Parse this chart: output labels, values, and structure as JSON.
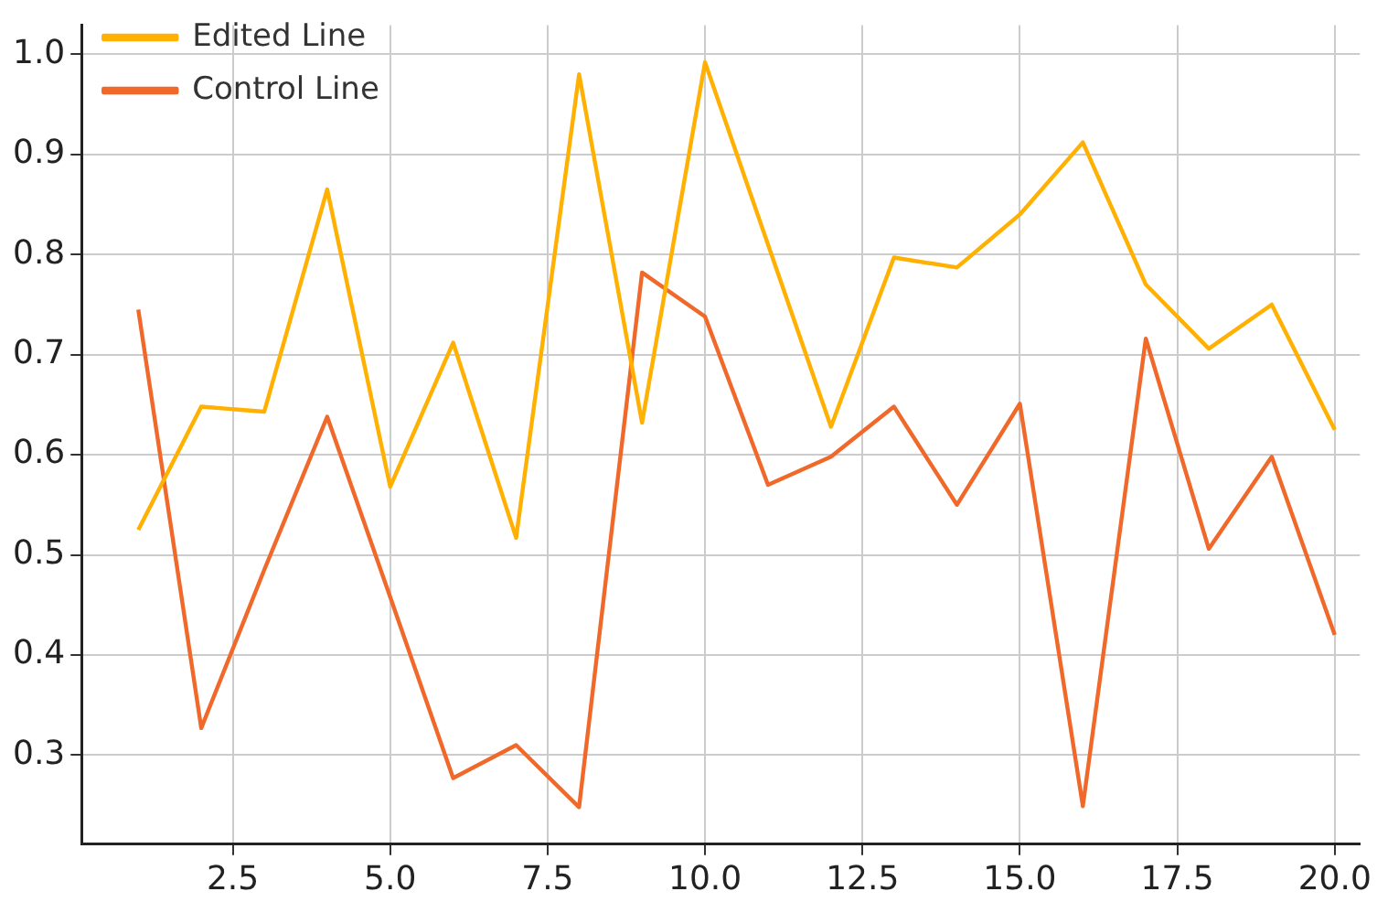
{
  "chart_data": {
    "type": "line",
    "x": [
      1,
      2,
      3,
      4,
      5,
      6,
      7,
      8,
      9,
      10,
      11,
      12,
      13,
      14,
      15,
      16,
      17,
      18,
      19,
      20
    ],
    "series": [
      {
        "name": "Edited Line",
        "color": "#ffb000",
        "values": [
          0.525,
          0.648,
          0.643,
          0.865,
          0.568,
          0.712,
          0.517,
          0.98,
          0.632,
          0.992,
          0.81,
          0.628,
          0.797,
          0.787,
          0.84,
          0.912,
          0.77,
          0.706,
          0.75,
          0.625
        ]
      },
      {
        "name": "Control Line",
        "color": "#f0692a",
        "values": [
          0.745,
          0.327,
          0.485,
          0.638,
          0.458,
          0.277,
          0.31,
          0.248,
          0.782,
          0.738,
          0.57,
          0.598,
          0.648,
          0.55,
          0.651,
          0.249,
          0.716,
          0.506,
          0.598,
          0.42
        ]
      }
    ],
    "xlim": [
      0.1,
      20.4
    ],
    "xticks": [
      {
        "value": 2.5,
        "label": "2.5"
      },
      {
        "value": 5,
        "label": "5.0"
      },
      {
        "value": 7.5,
        "label": "7.5"
      },
      {
        "value": 10,
        "label": "10.0"
      },
      {
        "value": 12.5,
        "label": "12.5"
      },
      {
        "value": 15,
        "label": "15.0"
      },
      {
        "value": 17.5,
        "label": "17.5"
      },
      {
        "value": 20,
        "label": "20.0"
      }
    ],
    "ylim": [
      0.211,
      1.029
    ],
    "yticks": [
      0.3,
      0.4,
      0.5,
      0.6,
      0.7,
      0.8,
      0.9,
      {
        "value": 1,
        "label": "1.0"
      }
    ],
    "grid": true,
    "legend": "top left",
    "line_style": "solid",
    "marker": "none"
  }
}
